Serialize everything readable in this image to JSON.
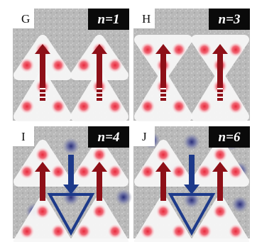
{
  "panels": [
    {
      "letter": "G",
      "label": "n=1"
    },
    {
      "letter": "H",
      "label": "n=3"
    },
    {
      "letter": "I",
      "label": "n=4"
    },
    {
      "letter": "J",
      "label": "n=6"
    }
  ]
}
